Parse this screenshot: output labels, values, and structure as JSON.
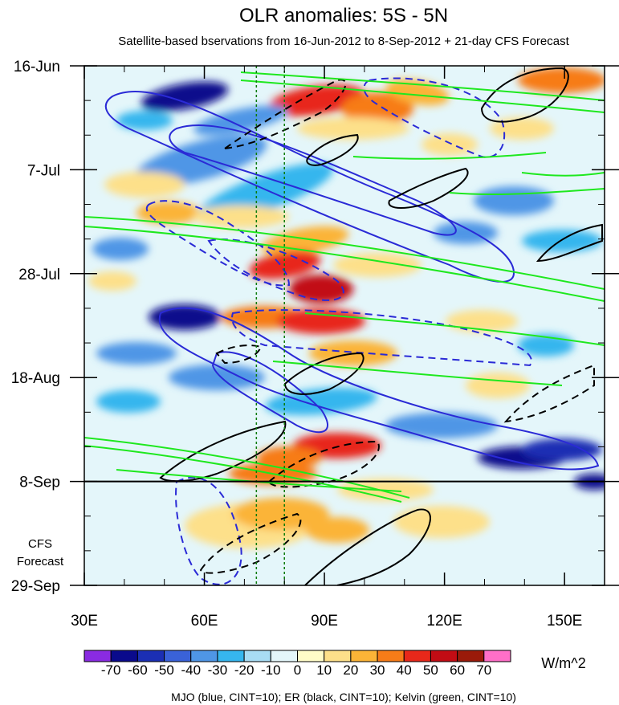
{
  "chart_data": {
    "type": "heatmap",
    "title": "OLR anomalies: 5S - 5N",
    "subtitle": "Satellite-based bservations from 16-Jun-2012 to 8-Sep-2012 + 21-day CFS Forecast",
    "x_range": [
      30,
      160
    ],
    "x_ticks": [
      {
        "value": 30,
        "label": "30E"
      },
      {
        "value": 60,
        "label": "60E"
      },
      {
        "value": 90,
        "label": "90E"
      },
      {
        "value": 120,
        "label": "120E"
      },
      {
        "value": 150,
        "label": "150E"
      }
    ],
    "y_range_days": [
      0,
      105
    ],
    "y_ticks": [
      {
        "day": 0,
        "label": "16-Jun"
      },
      {
        "day": 21,
        "label": "7-Jul"
      },
      {
        "day": 42,
        "label": "28-Jul"
      },
      {
        "day": 63,
        "label": "18-Aug"
      },
      {
        "day": 84,
        "label": "8-Sep"
      },
      {
        "day": 105,
        "label": "29-Sep"
      }
    ],
    "observation_end_day": 84,
    "forecast_label": [
      "CFS",
      "Forecast"
    ],
    "reference_longitudes": [
      73,
      80
    ],
    "colorbar": {
      "unit": "W/m^2",
      "levels": [
        "-70",
        "-60",
        "-50",
        "-40",
        "-30",
        "-20",
        "-10",
        "0",
        "10",
        "20",
        "30",
        "40",
        "50",
        "60",
        "70"
      ],
      "colors": [
        "#8a2be2",
        "#0a0a8c",
        "#1b2fb4",
        "#3a62d8",
        "#4f96e6",
        "#36b6ee",
        "#a8dcf4",
        "#e4f6fa",
        "#fffcc8",
        "#fde08a",
        "#fbb437",
        "#f77c18",
        "#e8281a",
        "#c20c14",
        "#9a1a0a",
        "#ff6fc8"
      ]
    },
    "contours": [
      {
        "name": "MJO",
        "color": "blue",
        "cint": 10
      },
      {
        "name": "ER",
        "color": "black",
        "cint": 10
      },
      {
        "name": "Kelvin",
        "color": "green",
        "cint": 10
      }
    ],
    "legend_text": "MJO (blue, CINT=10); ER (black, CINT=10); Kelvin (green, CINT=10)"
  }
}
